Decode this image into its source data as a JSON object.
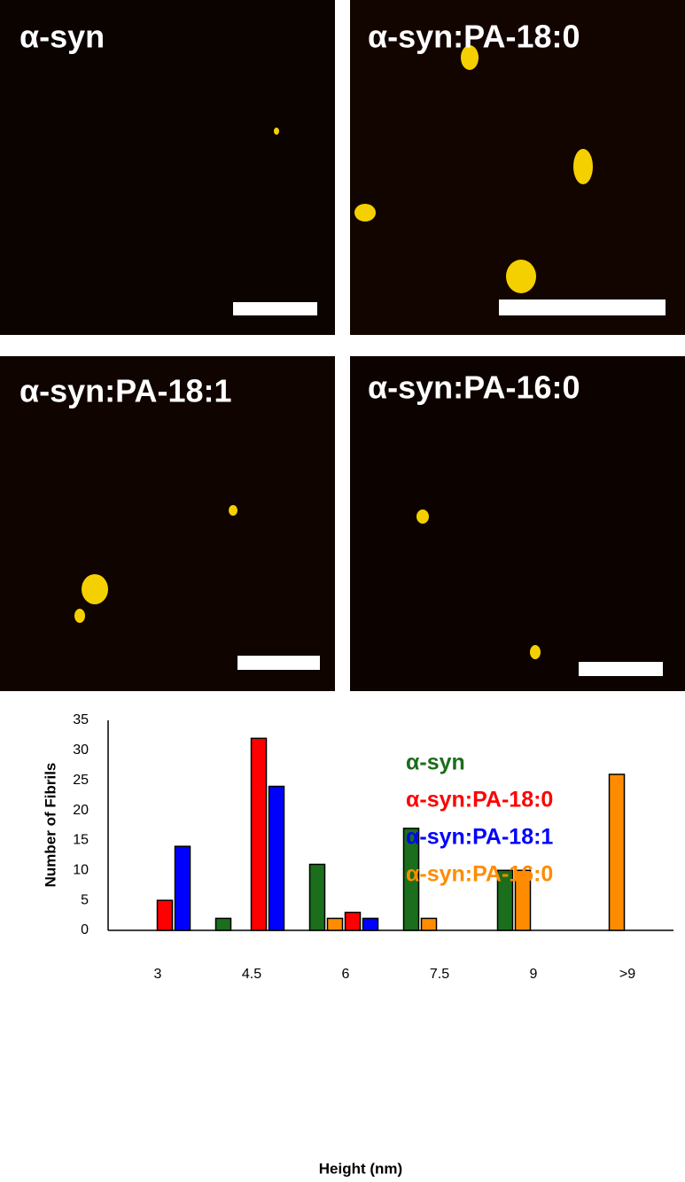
{
  "panels": [
    {
      "label": "α-syn"
    },
    {
      "label": "α-syn:PA-18:0"
    },
    {
      "label": "α-syn:PA-18:1"
    },
    {
      "label": "α-syn:PA-16:0"
    }
  ],
  "chart_data": {
    "type": "bar",
    "x_label": "Height (nm)",
    "y_label": "Number of Fibrils",
    "categories": [
      "3",
      "4.5",
      "6",
      "7.5",
      "9",
      ">9"
    ],
    "series": [
      {
        "name": "α-syn",
        "color": "#1b6e1b",
        "values": [
          0,
          2,
          11,
          17,
          10,
          0
        ]
      },
      {
        "name": "α-syn:PA-18:0",
        "color": "#ff0000",
        "values": [
          5,
          32,
          3,
          0,
          0,
          0
        ]
      },
      {
        "name": "α-syn:PA-18:1",
        "color": "#0000ff",
        "values": [
          14,
          24,
          2,
          0,
          0,
          0
        ]
      },
      {
        "name": "α-syn:PA-16:0",
        "color": "#ff8c00",
        "values": [
          0,
          0,
          2,
          2,
          10,
          26
        ]
      }
    ],
    "ylim": [
      0,
      35
    ],
    "yticks": [
      0,
      5,
      10,
      15,
      20,
      25,
      30,
      35
    ],
    "grid": false,
    "legend": "upper right"
  }
}
